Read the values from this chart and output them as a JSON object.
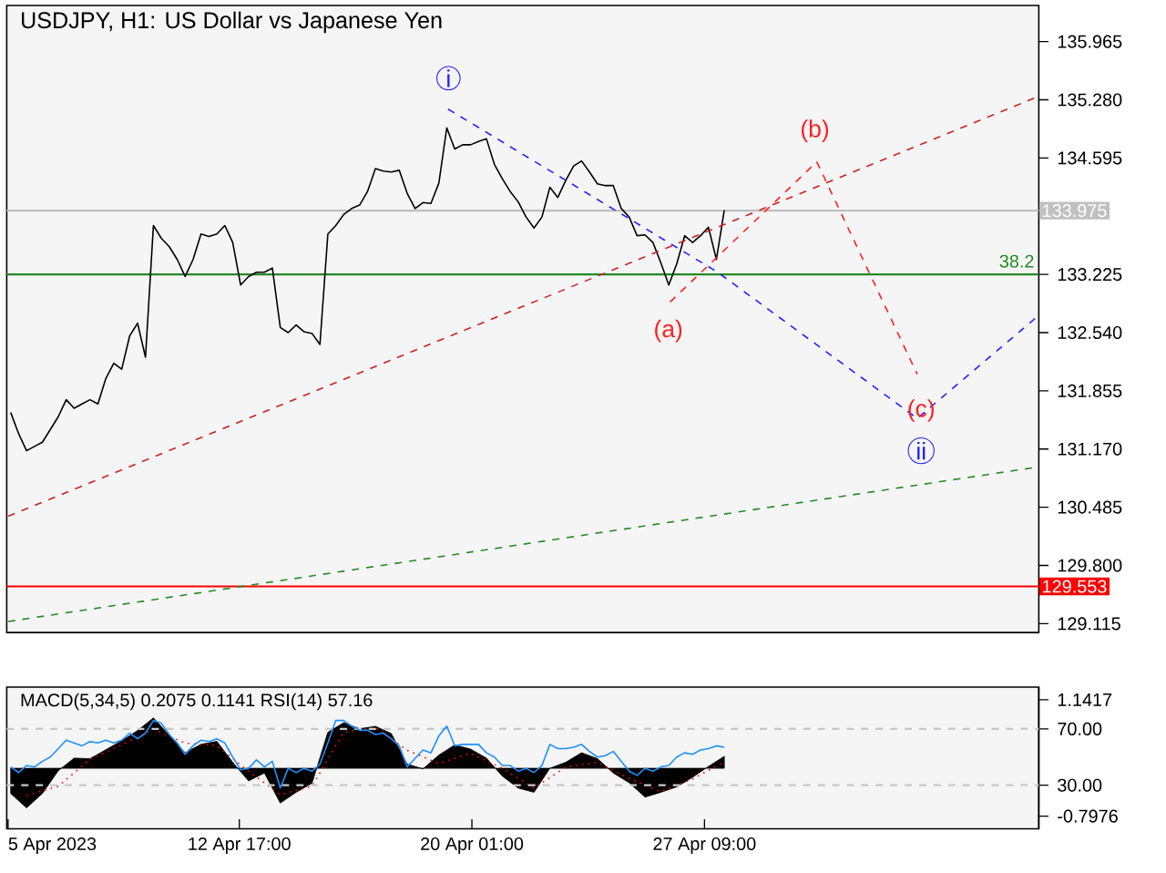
{
  "chart_data": [
    {
      "type": "line",
      "title": "USDJPY, H1:  US Dollar vs Japanese Yen",
      "xlim": [
        "2023-04-05T09:00",
        "2023-05-07T22:00"
      ],
      "ylim": [
        129.01,
        136.39
      ],
      "tick_labels": "y",
      "yticks": [
        {
          "value": 135.965,
          "label": "135.965"
        },
        {
          "value": 135.28,
          "label": "135.280"
        },
        {
          "value": 134.595,
          "label": "134.595"
        },
        {
          "value": 133.225,
          "label": "133.225"
        },
        {
          "value": 132.54,
          "label": "132.540"
        },
        {
          "value": 131.855,
          "label": "131.855"
        },
        {
          "value": 131.17,
          "label": "131.170"
        },
        {
          "value": 130.485,
          "label": "130.485"
        },
        {
          "value": 129.8,
          "label": "129.800"
        },
        {
          "value": 129.115,
          "label": "129.115"
        }
      ],
      "series": [
        {
          "color": "#000000",
          "x": [
            "2023-04-05T12:00",
            "2023-04-05T18:00",
            "2023-04-06T00:00",
            "2023-04-06T06:00",
            "2023-04-06T12:00",
            "2023-04-06T18:00",
            "2023-04-07T00:00",
            "2023-04-07T06:00",
            "2023-04-07T12:00",
            "2023-04-07T18:00",
            "2023-04-08T00:00",
            "2023-04-08T06:00",
            "2023-04-08T12:00",
            "2023-04-08T18:00",
            "2023-04-09T00:00",
            "2023-04-09T06:00",
            "2023-04-09T12:00",
            "2023-04-09T18:00",
            "2023-04-10T00:00",
            "2023-04-10T06:00",
            "2023-04-10T12:00",
            "2023-04-10T18:00",
            "2023-04-11T00:00",
            "2023-04-11T06:00",
            "2023-04-11T12:00",
            "2023-04-11T18:00",
            "2023-04-12T00:00",
            "2023-04-12T06:00",
            "2023-04-12T12:00",
            "2023-04-12T18:00",
            "2023-04-13T00:00",
            "2023-04-13T06:00",
            "2023-04-13T12:00",
            "2023-04-13T18:00",
            "2023-04-14T00:00",
            "2023-04-14T06:00",
            "2023-04-14T12:00",
            "2023-04-14T18:00",
            "2023-04-15T00:00",
            "2023-04-15T06:00",
            "2023-04-15T12:00",
            "2023-04-15T18:00",
            "2023-04-16T00:00",
            "2023-04-16T06:00",
            "2023-04-16T12:00",
            "2023-04-16T18:00",
            "2023-04-17T00:00",
            "2023-04-17T06:00",
            "2023-04-17T12:00",
            "2023-04-17T18:00",
            "2023-04-18T00:00",
            "2023-04-18T06:00",
            "2023-04-18T12:00",
            "2023-04-18T18:00",
            "2023-04-19T00:00",
            "2023-04-19T06:00",
            "2023-04-19T12:00",
            "2023-04-19T18:00",
            "2023-04-20T00:00",
            "2023-04-20T06:00",
            "2023-04-20T12:00",
            "2023-04-20T18:00",
            "2023-04-21T00:00",
            "2023-04-21T06:00",
            "2023-04-21T12:00",
            "2023-04-21T18:00",
            "2023-04-22T00:00",
            "2023-04-22T06:00",
            "2023-04-22T12:00",
            "2023-04-22T18:00",
            "2023-04-23T00:00",
            "2023-04-23T06:00",
            "2023-04-23T12:00",
            "2023-04-23T18:00",
            "2023-04-24T00:00",
            "2023-04-24T06:00",
            "2023-04-24T12:00",
            "2023-04-24T18:00",
            "2023-04-25T00:00",
            "2023-04-25T06:00",
            "2023-04-25T12:00",
            "2023-04-25T18:00",
            "2023-04-26T00:00",
            "2023-04-26T06:00",
            "2023-04-26T12:00",
            "2023-04-26T18:00",
            "2023-04-27T00:00",
            "2023-04-27T06:00",
            "2023-04-27T12:00",
            "2023-04-27T18:00",
            "2023-04-28T00:00"
          ],
          "values": [
            131.6,
            131.35,
            131.15,
            131.2,
            131.25,
            131.4,
            131.55,
            131.75,
            131.65,
            131.7,
            131.75,
            131.7,
            132.0,
            132.18,
            132.11,
            132.5,
            132.65,
            132.25,
            133.8,
            133.65,
            133.55,
            133.4,
            133.2,
            133.4,
            133.7,
            133.67,
            133.7,
            133.8,
            133.6,
            133.1,
            133.2,
            133.25,
            133.25,
            133.3,
            132.6,
            132.54,
            132.63,
            132.55,
            132.53,
            132.4,
            133.7,
            133.8,
            133.93,
            134.0,
            134.04,
            134.2,
            134.47,
            134.44,
            134.43,
            134.45,
            134.18,
            134.0,
            134.07,
            134.06,
            134.3,
            134.95,
            134.7,
            134.75,
            134.75,
            134.79,
            134.82,
            134.52,
            134.35,
            134.2,
            134.08,
            133.9,
            133.77,
            133.9,
            134.25,
            134.13,
            134.33,
            134.5,
            134.56,
            134.43,
            134.29,
            134.27,
            134.27,
            134.0,
            133.9,
            133.68,
            133.69,
            133.6,
            133.36,
            133.1,
            133.35,
            133.68,
            133.6,
            133.68,
            133.78,
            133.4,
            133.98
          ]
        },
        {
          "color": "#cc2222",
          "line_style": "dashed",
          "x": [
            "2023-04-05T10:00",
            "2023-05-07T22:00"
          ],
          "values": [
            130.38,
            135.32
          ]
        },
        {
          "color": "#228b22",
          "line_style": "dashed",
          "x": [
            "2023-04-05T10:00",
            "2023-05-07T22:00"
          ],
          "values": [
            129.14,
            130.96
          ]
        },
        {
          "color": "#2020ff",
          "line_style": "dashed",
          "x": [
            "2023-04-19T07:00",
            "2023-04-27T19:00",
            "2023-05-04T02:00",
            "2023-05-07T21:00"
          ],
          "values": [
            135.17,
            133.25,
            131.53,
            132.73
          ]
        },
        {
          "color": "#ff2020",
          "line_style": "dashed",
          "x": [
            "2023-04-26T07:00",
            "2023-04-30T22:00",
            "2023-05-04T02:00"
          ],
          "values": [
            132.9,
            134.55,
            132.05
          ]
        }
      ],
      "ref_lines": [
        {
          "axis": "y",
          "value": 133.975,
          "label": "133.975",
          "color": "#c0c0c0"
        },
        {
          "axis": "y",
          "value": 133.225,
          "color": "#228b22"
        },
        {
          "axis": "y",
          "value": 129.553,
          "label": "129.553",
          "color": "#ff0000"
        }
      ],
      "annotations": [
        "i",
        "(a)",
        "(b)",
        "(c)",
        "ii",
        "38.2"
      ]
    },
    {
      "type": "line",
      "title": "MACD(5,34,5) 0.2075 0.1141 RSI(14) 57.16",
      "xlim": [
        "2023-04-05T09:00",
        "2023-05-07T22:00"
      ],
      "ylim": [
        -1.01,
        1.354
      ],
      "y2lim": [
        -1.0,
        99.7
      ],
      "xticks": [
        {
          "value": "2023-04-05T10:00",
          "label": "5 Apr 2023"
        },
        {
          "value": "2023-04-12T17:00",
          "label": "12 Apr 17:00"
        },
        {
          "value": "2023-04-20T01:00",
          "label": "20 Apr 01:00"
        },
        {
          "value": "2023-04-27T09:00",
          "label": "27 Apr 09:00"
        }
      ],
      "yticks": [
        1.1417,
        -0.7976
      ],
      "y2ticks": [
        {
          "value": 70,
          "label": "70.00"
        },
        {
          "value": 30,
          "label": "30.00"
        }
      ],
      "series": [
        {
          "type": "area",
          "color": "#000000",
          "x": [
            "2023-04-05T12:00",
            "2023-04-06T00:00",
            "2023-04-06T12:00",
            "2023-04-07T00:00",
            "2023-04-07T12:00",
            "2023-04-08T00:00",
            "2023-04-08T12:00",
            "2023-04-09T00:00",
            "2023-04-09T12:00",
            "2023-04-10T00:00",
            "2023-04-10T12:00",
            "2023-04-11T00:00",
            "2023-04-11T12:00",
            "2023-04-12T00:00",
            "2023-04-12T12:00",
            "2023-04-13T00:00",
            "2023-04-13T12:00",
            "2023-04-14T00:00",
            "2023-04-14T12:00",
            "2023-04-15T00:00",
            "2023-04-15T12:00",
            "2023-04-16T00:00",
            "2023-04-16T12:00",
            "2023-04-17T00:00",
            "2023-04-17T12:00",
            "2023-04-18T00:00",
            "2023-04-18T12:00",
            "2023-04-19T00:00",
            "2023-04-19T12:00",
            "2023-04-20T00:00",
            "2023-04-20T12:00",
            "2023-04-21T00:00",
            "2023-04-21T12:00",
            "2023-04-22T00:00",
            "2023-04-22T12:00",
            "2023-04-23T00:00",
            "2023-04-23T12:00",
            "2023-04-24T00:00",
            "2023-04-24T12:00",
            "2023-04-25T00:00",
            "2023-04-25T12:00",
            "2023-04-26T00:00",
            "2023-04-26T12:00",
            "2023-04-27T00:00",
            "2023-04-27T12:00",
            "2023-04-28T00:00"
          ],
          "values": [
            -0.42,
            -0.66,
            -0.42,
            -0.04,
            0.17,
            0.16,
            0.31,
            0.46,
            0.63,
            0.84,
            0.55,
            0.26,
            0.4,
            0.45,
            0.1,
            -0.21,
            -0.08,
            -0.58,
            -0.4,
            -0.25,
            0.6,
            0.76,
            0.66,
            0.7,
            0.58,
            0.07,
            -0.01,
            0.22,
            0.39,
            0.32,
            0.17,
            -0.13,
            -0.33,
            -0.4,
            0.0,
            0.1,
            0.26,
            0.16,
            -0.08,
            -0.24,
            -0.48,
            -0.4,
            -0.31,
            -0.15,
            0.03,
            0.2
          ]
        },
        {
          "color": "#ff0000",
          "line_style": "dotted",
          "x": [
            "2023-04-06T00:00",
            "2023-04-07T00:00",
            "2023-04-08T00:00",
            "2023-04-09T00:00",
            "2023-04-10T00:00",
            "2023-04-11T00:00",
            "2023-04-12T00:00",
            "2023-04-13T00:00",
            "2023-04-14T00:00",
            "2023-04-15T00:00",
            "2023-04-16T00:00",
            "2023-04-17T00:00",
            "2023-04-18T00:00",
            "2023-04-19T00:00",
            "2023-04-20T00:00",
            "2023-04-21T00:00",
            "2023-04-22T00:00",
            "2023-04-23T00:00",
            "2023-04-24T00:00",
            "2023-04-25T00:00",
            "2023-04-26T00:00",
            "2023-04-27T00:00",
            "2023-04-28T00:00"
          ],
          "values": [
            -0.45,
            -0.3,
            0.15,
            0.39,
            0.65,
            0.42,
            0.38,
            -0.05,
            -0.44,
            -0.3,
            0.6,
            0.68,
            0.3,
            0.08,
            0.25,
            0.0,
            -0.33,
            0.02,
            0.1,
            -0.17,
            -0.39,
            -0.18,
            0.11
          ]
        },
        {
          "color": "#1e90ff",
          "axis": "y2",
          "x": [
            "2023-04-05T12:00",
            "2023-04-05T18:00",
            "2023-04-06T00:00",
            "2023-04-06T06:00",
            "2023-04-06T12:00",
            "2023-04-06T18:00",
            "2023-04-07T00:00",
            "2023-04-07T06:00",
            "2023-04-07T12:00",
            "2023-04-07T18:00",
            "2023-04-08T00:00",
            "2023-04-08T06:00",
            "2023-04-08T12:00",
            "2023-04-08T18:00",
            "2023-04-09T00:00",
            "2023-04-09T06:00",
            "2023-04-09T12:00",
            "2023-04-09T18:00",
            "2023-04-10T00:00",
            "2023-04-10T06:00",
            "2023-04-10T12:00",
            "2023-04-10T18:00",
            "2023-04-11T00:00",
            "2023-04-11T06:00",
            "2023-04-11T12:00",
            "2023-04-11T18:00",
            "2023-04-12T00:00",
            "2023-04-12T06:00",
            "2023-04-12T12:00",
            "2023-04-12T18:00",
            "2023-04-13T00:00",
            "2023-04-13T06:00",
            "2023-04-13T12:00",
            "2023-04-13T18:00",
            "2023-04-14T00:00",
            "2023-04-14T06:00",
            "2023-04-14T12:00",
            "2023-04-14T18:00",
            "2023-04-15T00:00",
            "2023-04-15T06:00",
            "2023-04-15T12:00",
            "2023-04-15T18:00",
            "2023-04-16T00:00",
            "2023-04-16T06:00",
            "2023-04-16T12:00",
            "2023-04-16T18:00",
            "2023-04-17T00:00",
            "2023-04-17T06:00",
            "2023-04-17T12:00",
            "2023-04-17T18:00",
            "2023-04-18T00:00",
            "2023-04-18T06:00",
            "2023-04-18T12:00",
            "2023-04-18T18:00",
            "2023-04-19T00:00",
            "2023-04-19T06:00",
            "2023-04-19T12:00",
            "2023-04-19T18:00",
            "2023-04-20T00:00",
            "2023-04-20T06:00",
            "2023-04-20T12:00",
            "2023-04-20T18:00",
            "2023-04-21T00:00",
            "2023-04-21T06:00",
            "2023-04-21T12:00",
            "2023-04-21T18:00",
            "2023-04-22T00:00",
            "2023-04-22T06:00",
            "2023-04-22T12:00",
            "2023-04-22T18:00",
            "2023-04-23T00:00",
            "2023-04-23T06:00",
            "2023-04-23T12:00",
            "2023-04-23T18:00",
            "2023-04-24T00:00",
            "2023-04-24T06:00",
            "2023-04-24T12:00",
            "2023-04-24T18:00",
            "2023-04-25T00:00",
            "2023-04-25T06:00",
            "2023-04-25T12:00",
            "2023-04-25T18:00",
            "2023-04-26T00:00",
            "2023-04-26T06:00",
            "2023-04-26T12:00",
            "2023-04-26T18:00",
            "2023-04-27T00:00",
            "2023-04-27T06:00",
            "2023-04-27T12:00",
            "2023-04-27T18:00",
            "2023-04-28T00:00"
          ],
          "values": [
            43,
            39,
            44,
            43,
            47,
            50,
            56,
            62,
            60,
            58,
            61,
            60,
            62,
            60,
            62,
            67,
            63,
            67,
            76,
            74,
            66,
            60,
            52,
            58,
            62,
            61,
            63,
            60,
            50,
            41,
            42,
            48,
            43,
            47,
            28,
            42,
            39,
            42,
            40,
            45,
            60,
            76,
            76,
            72,
            69,
            69,
            66,
            67,
            63,
            58,
            43,
            49,
            55,
            53,
            65,
            72,
            58,
            59,
            59,
            59,
            53,
            50,
            44,
            44,
            40,
            42,
            39,
            44,
            59,
            56,
            56,
            57,
            59,
            54,
            50,
            51,
            54,
            47,
            40,
            37,
            42,
            40,
            43,
            44,
            50,
            53,
            52,
            55,
            56,
            58,
            57
          ]
        }
      ],
      "ref_lines": [
        {
          "axis": "y2",
          "value": 70,
          "color": "#c8c8c8",
          "line_style": "dashed"
        },
        {
          "axis": "y2",
          "value": 30,
          "color": "#c8c8c8",
          "line_style": "dashed"
        }
      ]
    }
  ]
}
